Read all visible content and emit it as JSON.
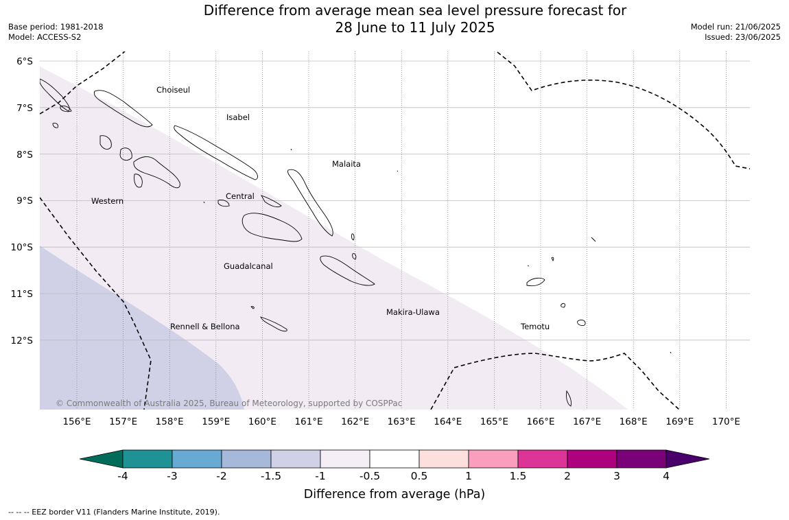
{
  "header": {
    "title_line1": "Difference from average mean sea level pressure forecast for",
    "title_line2": "28 June to 11 July 2025",
    "base_period": "Base period: 1981-2018",
    "model": "Model: ACCESS-S2",
    "model_run": "Model run: 21/06/2025",
    "issued": "Issued: 23/06/2025"
  },
  "map": {
    "lat_labels": [
      "6°S",
      "7°S",
      "8°S",
      "9°S",
      "10°S",
      "11°S",
      "12°S"
    ],
    "lon_labels": [
      "156°E",
      "157°E",
      "158°E",
      "159°E",
      "160°E",
      "161°E",
      "162°E",
      "163°E",
      "164°E",
      "165°E",
      "166°E",
      "167°E",
      "168°E",
      "169°E",
      "170°E"
    ],
    "places": [
      {
        "name": "Choiseul"
      },
      {
        "name": "Isabel"
      },
      {
        "name": "Malaita"
      },
      {
        "name": "Central"
      },
      {
        "name": "Western"
      },
      {
        "name": "Guadalcanal"
      },
      {
        "name": "Makira-Ulawa"
      },
      {
        "name": "Rennell & Bellona"
      },
      {
        "name": "Temotu"
      }
    ],
    "copyright": "© Commonwealth of Australia 2025, Bureau of Meteorology, supported by COSPPac",
    "shading": [
      {
        "range": "-1.5 to -1",
        "color": "#d0d1e6"
      },
      {
        "range": "-1 to -0.5",
        "color": "#f2ebf4"
      }
    ]
  },
  "colorbar": {
    "label": "Difference from average (hPa)",
    "ticks": [
      "-4",
      "-3",
      "-2",
      "-1.5",
      "-1",
      "-0.5",
      "0.5",
      "1",
      "1.5",
      "2",
      "3",
      "4"
    ],
    "colors": [
      "#1f9296",
      "#67aad3",
      "#a6b9da",
      "#d0d1e6",
      "#f5eef7",
      "#ffffff",
      "#fde0de",
      "#f99fbd",
      "#dd3497",
      "#ae017e",
      "#7a0177"
    ],
    "low_color": "#016c59",
    "high_color": "#49006a"
  },
  "footer": {
    "legend": "--  --  -- EEZ border V11 (Flanders Marine Institute, 2019)."
  }
}
